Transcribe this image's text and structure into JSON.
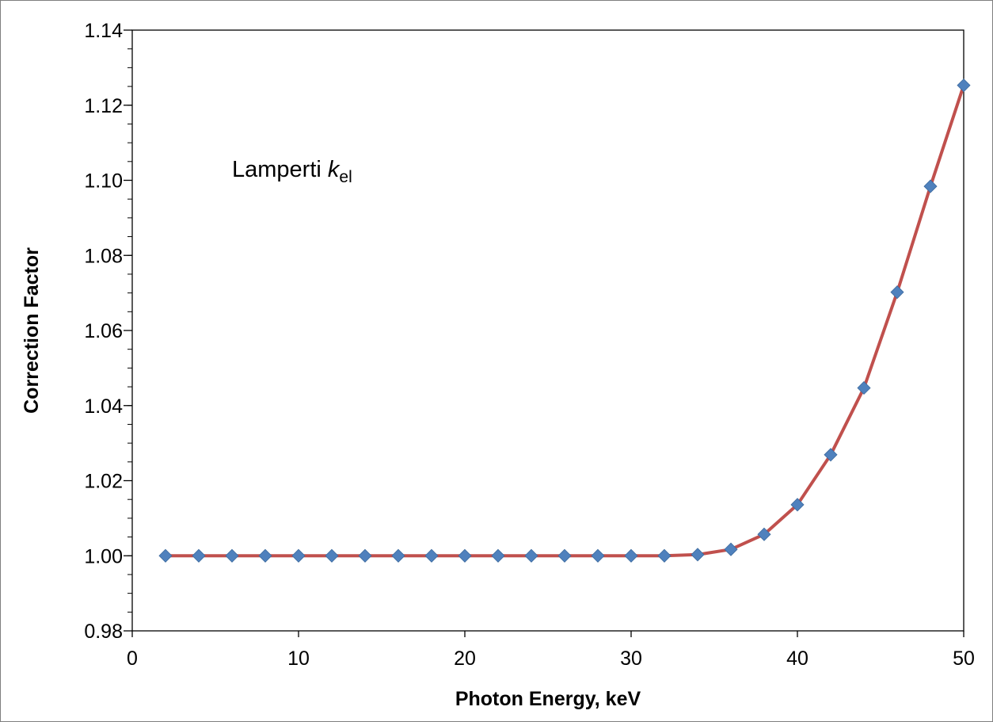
{
  "chart_data": {
    "type": "line",
    "xlabel": "Photon Energy, keV",
    "ylabel": "Correction Factor",
    "annotation": {
      "main": "Lamperti ",
      "italic": "k",
      "subscript": "el"
    },
    "xlim": [
      0,
      50
    ],
    "ylim": [
      0.98,
      1.14
    ],
    "x_ticks": [
      0,
      10,
      20,
      30,
      40,
      50
    ],
    "x_tick_labels": [
      "0",
      "10",
      "20",
      "30",
      "40",
      "50"
    ],
    "y_ticks": [
      0.98,
      1.0,
      1.02,
      1.04,
      1.06,
      1.08,
      1.1,
      1.12,
      1.14
    ],
    "y_tick_labels": [
      "0.98",
      "1.00",
      "1.02",
      "1.04",
      "1.06",
      "1.08",
      "1.10",
      "1.12",
      "1.14"
    ],
    "grid": false,
    "legend": "none",
    "series": [
      {
        "line_color": "#c0504d",
        "marker_color": "#4f81bd",
        "marker": "diamond",
        "x": [
          2,
          4,
          6,
          8,
          10,
          12,
          14,
          16,
          18,
          20,
          22,
          24,
          26,
          28,
          30,
          32,
          34,
          36,
          38,
          40,
          42,
          44,
          46,
          48,
          50
        ],
        "y": [
          1.0,
          1.0,
          1.0,
          1.0,
          1.0,
          1.0,
          1.0,
          1.0,
          1.0,
          1.0,
          1.0,
          1.0,
          1.0,
          1.0,
          1.0,
          1.0,
          1.0003,
          1.0017,
          1.0057,
          1.0136,
          1.0269,
          1.0447,
          1.0702,
          1.0984,
          1.1253
        ]
      }
    ]
  }
}
